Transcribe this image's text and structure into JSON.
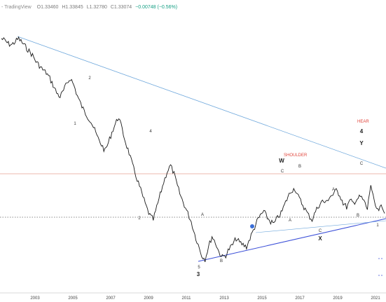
{
  "header": {
    "brand": "- TradingView",
    "ohlc": {
      "open": "O1.33460",
      "high": "H1.33845",
      "low": "L1.32780",
      "close": "C1.33074",
      "change": "−0.00748 (−0.56%)"
    }
  },
  "chart_data": {
    "type": "line",
    "title": "",
    "xlabel": "",
    "ylabel": "",
    "x_ticks": [
      "2003",
      "2005",
      "2007",
      "2009",
      "2011",
      "2013",
      "2015",
      "2017",
      "2019",
      "2021"
    ],
    "grid": false,
    "legend": "none",
    "series": [
      {
        "values_relative": [
          0.0,
          -0.02,
          -0.05,
          -0.06,
          -0.03,
          0.0,
          -0.04,
          -0.08,
          -0.12,
          -0.16,
          -0.22,
          -0.26,
          -0.3,
          -0.33,
          -0.38,
          -0.45,
          -0.52,
          -0.56,
          -0.5,
          -0.43,
          -0.38,
          -0.45,
          -0.55,
          -0.63,
          -0.7,
          -0.75,
          -0.8,
          -0.88,
          -0.96,
          -1.02,
          -1.08,
          -1.0,
          -0.9,
          -0.82,
          -0.75,
          -0.88,
          -1.0,
          -1.1,
          -1.22,
          -1.32,
          -1.42,
          -1.52,
          -1.62,
          -1.7,
          -1.74,
          -1.62,
          -1.5,
          -1.38,
          -1.28,
          -1.22,
          -1.3,
          -1.42,
          -1.52,
          -1.6,
          -1.68,
          -1.76,
          -1.88,
          -1.98,
          -2.08,
          -2.12,
          -2.0,
          -1.9,
          -1.96,
          -2.05,
          -2.1,
          -2.08,
          -2.02,
          -1.98,
          -1.92,
          -1.96,
          -1.98,
          -2.0,
          -1.92,
          -1.84,
          -1.76,
          -1.7,
          -1.66,
          -1.72,
          -1.76,
          -1.78,
          -1.72,
          -1.68,
          -1.6,
          -1.52,
          -1.46,
          -1.44,
          -1.52,
          -1.58,
          -1.64,
          -1.7,
          -1.74,
          -1.66,
          -1.6,
          -1.56,
          -1.58,
          -1.52,
          -1.5,
          -1.46,
          -1.5,
          -1.58,
          -1.62,
          -1.56,
          -1.58,
          -1.54,
          -1.52,
          -1.56,
          -1.64,
          -1.4,
          -1.58,
          -1.66,
          -1.62,
          -1.68
        ]
      }
    ],
    "annotations": {
      "wave_labels": [
        "1",
        "2",
        "4",
        "2",
        "A",
        "B",
        "5",
        "3",
        "W",
        "C",
        "B",
        "A",
        "C",
        "X",
        "A",
        "C",
        "B",
        "Y",
        "4",
        "1"
      ],
      "shoulder": "SHOULDER",
      "head": "HEAR"
    },
    "colors": {
      "price": "#1a1a1a",
      "upper_trendline": "#6fa8dc",
      "lower_trendline": "#3b4fd8",
      "red_level": "#e8a090",
      "neckline_dotted": "#666666",
      "shoulder_text": "#e0453b",
      "head_text": "#e0453b",
      "axis_text": "#444444"
    }
  }
}
